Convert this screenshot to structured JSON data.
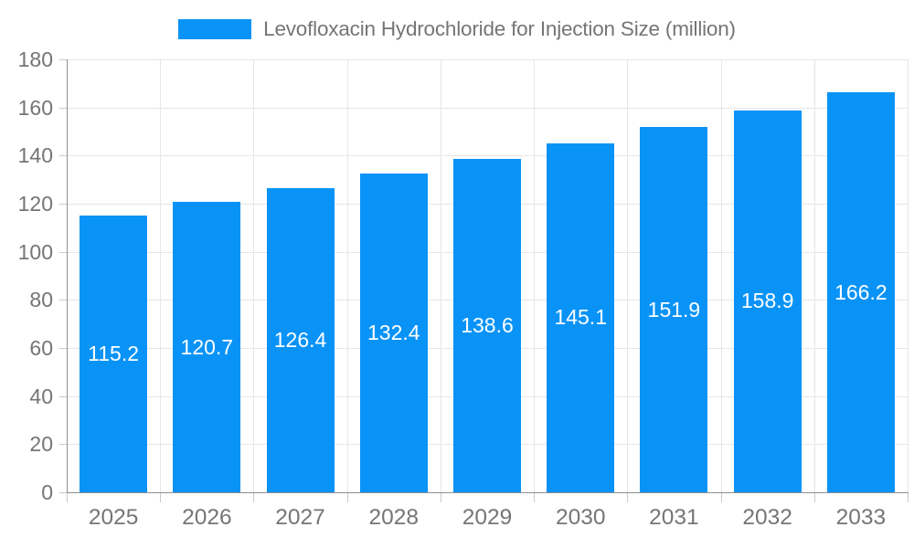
{
  "chart_data": {
    "type": "bar",
    "title": "Levofloxacin Hydrochloride for Injection Size (million)",
    "categories": [
      "2025",
      "2026",
      "2027",
      "2028",
      "2029",
      "2030",
      "2031",
      "2032",
      "2033"
    ],
    "values": [
      115.2,
      120.7,
      126.4,
      132.4,
      138.6,
      145.1,
      151.9,
      158.9,
      166.2
    ],
    "xlabel": "",
    "ylabel": "",
    "ylim": [
      0,
      180
    ],
    "ytick_step": 20,
    "grid": true,
    "legend_position": "top-center",
    "value_labels": "inside-center-white",
    "colors": {
      "bar": "#0993f7",
      "value_label": "#ffffff",
      "axis_text": "#757575",
      "legend_text": "#757575",
      "gridline": "#e6e6e6",
      "axis_line": "#8f8f8f",
      "tick": "#c9c9c9",
      "background": "#ffffff"
    }
  }
}
